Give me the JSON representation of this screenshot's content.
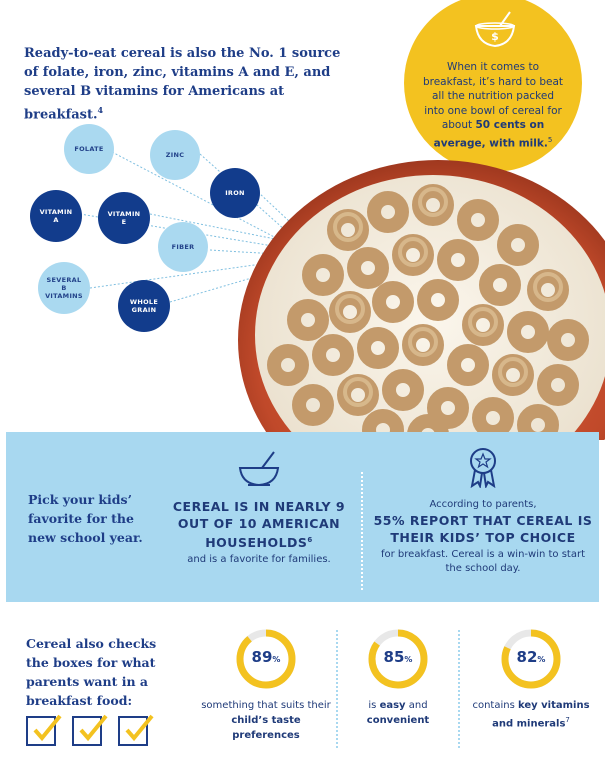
{
  "intro": {
    "text": "Ready-to-eat cereal is also the No. 1 source of folate, iron, zinc, vitamins A and E, and several B vitamins for Americans at breakfast.",
    "footnote": "4"
  },
  "price_circle": {
    "text": "When it comes to breakfast, it’s hard to beat all the nutrition packed into one bowl of cereal for about",
    "highlight": "50 cents on average, with milk.",
    "footnote": "5",
    "icon": "bowl-dollar-icon"
  },
  "nutrients": [
    {
      "label_lines": [
        "FOLATE"
      ],
      "style": "light"
    },
    {
      "label_lines": [
        "ZINC"
      ],
      "style": "light"
    },
    {
      "label_lines": [
        "IRON"
      ],
      "style": "dark"
    },
    {
      "label_lines": [
        "VITAMIN",
        "A"
      ],
      "style": "dark"
    },
    {
      "label_lines": [
        "VITAMIN",
        "E"
      ],
      "style": "dark"
    },
    {
      "label_lines": [
        "FIBER"
      ],
      "style": "light"
    },
    {
      "label_lines": [
        "SEVERAL",
        "B",
        "VITAMINS"
      ],
      "style": "light"
    },
    {
      "label_lines": [
        "WHOLE",
        "GRAIN"
      ],
      "style": "dark"
    }
  ],
  "band": {
    "pick": "Pick your kids’ favorite for the new school year.",
    "households": {
      "icon": "cereal-bowl-icon",
      "head": "CEREAL IS IN NEARLY 9 OUT OF 10 AMERICAN HOUSEHOLDS",
      "footnote": "6",
      "sub": "and is a favorite for families."
    },
    "parents": {
      "icon": "award-ribbon-icon",
      "pre": "According to parents,",
      "head": "55% REPORT THAT CEREAL IS THEIR KIDS’ TOP CHOICE",
      "sub": "for breakfast. Cereal is a win-win to start the school day."
    }
  },
  "checks": {
    "text": "Cereal also checks the boxes for what parents want in a breakfast food:",
    "boxes": 3
  },
  "stats": [
    {
      "value": 89,
      "pct": "89",
      "unit": "%",
      "label_plain": "something that suits their ",
      "label_bold": "child’s taste preferences",
      "footnote": ""
    },
    {
      "value": 85,
      "pct": "85",
      "unit": "%",
      "label_plain": "is ",
      "label_bold": "easy",
      "label_plain2": " and ",
      "label_bold2": "convenient",
      "footnote": ""
    },
    {
      "value": 82,
      "pct": "82",
      "unit": "%",
      "label_plain": "contains ",
      "label_bold": "key vitamins and minerals",
      "footnote": "7"
    }
  ],
  "colors": {
    "navy": "#1e3d87",
    "light_blue": "#a8d8f0",
    "yellow": "#f3c220",
    "bowl_red": "#c0492a"
  }
}
